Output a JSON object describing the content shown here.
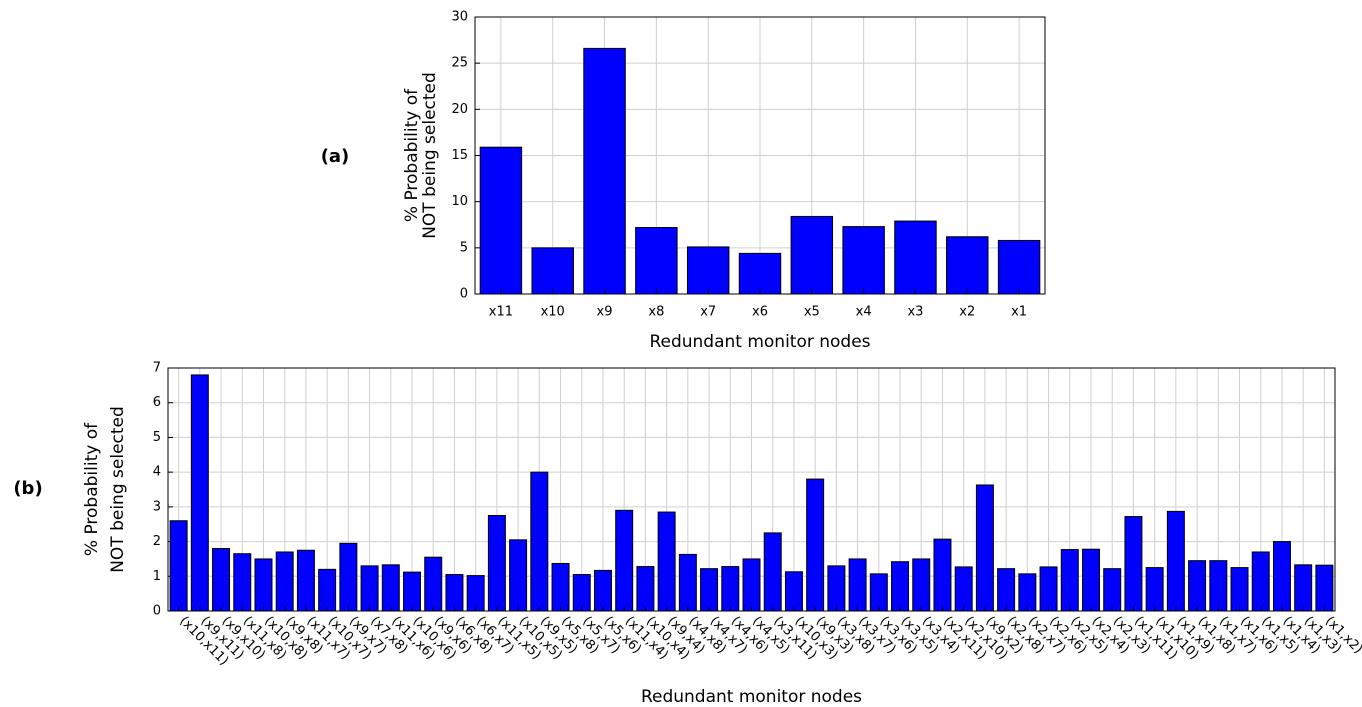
{
  "chart_data": [
    {
      "type": "bar",
      "panel_label": "(a)",
      "xlabel": "Redundant monitor nodes",
      "ylabel": [
        "% Probability of",
        "NOT being selected"
      ],
      "categories": [
        "x11",
        "x10",
        "x9",
        "x8",
        "x7",
        "x6",
        "x5",
        "x4",
        "x3",
        "x2",
        "x1"
      ],
      "values": [
        15.9,
        5.0,
        26.6,
        7.2,
        5.1,
        4.4,
        8.4,
        7.3,
        7.9,
        6.2,
        5.8
      ],
      "color": "#0000ff",
      "ylim": [
        0,
        30
      ],
      "yticks": [
        0,
        5,
        10,
        15,
        20,
        25,
        30
      ],
      "grid": true
    },
    {
      "type": "bar",
      "panel_label": "(b)",
      "xlabel": "Redundant monitor nodes",
      "ylabel": [
        "% Probability of",
        "NOT being selected"
      ],
      "categories": [
        "(x10,x11)",
        "(x9,x11)",
        "(x9,x10)",
        "(x11,x8)",
        "(x10,x8)",
        "(x9,x8)",
        "(x11,x7)",
        "(x10,x7)",
        "(x9,x7)",
        "(x7,x8)",
        "(x11,x6)",
        "(x10,x6)",
        "(x9,x6)",
        "(x6,x8)",
        "(x6,x7)",
        "(x11,x5)",
        "(x10,x5)",
        "(x9,x5)",
        "(x5,x8)",
        "(x5,x7)",
        "(x5,x6)",
        "(x11,x4)",
        "(x10,x4)",
        "(x9,x4)",
        "(x4,x8)",
        "(x4,x7)",
        "(x4,x6)",
        "(x4,x5)",
        "(x3,x11)",
        "(x10,x3)",
        "(x9,x3)",
        "(x3,x8)",
        "(x3,x7)",
        "(x3,x6)",
        "(x3,x5)",
        "(x3,x4)",
        "(x2,x11)",
        "(x2,x10)",
        "(x9,x2)",
        "(x2,x8)",
        "(x2,x7)",
        "(x2,x6)",
        "(x2,x5)",
        "(x2,x4)",
        "(x2,x3)",
        "(x1,x11)",
        "(x1,x10)",
        "(x1,x9)",
        "(x1,x8)",
        "(x1,x7)",
        "(x1,x6)",
        "(x1,x5)",
        "(x1,x4)",
        "(x1,x3)",
        "(x1,x2)"
      ],
      "values": [
        2.6,
        6.8,
        1.8,
        1.65,
        1.5,
        1.7,
        1.75,
        1.2,
        1.95,
        1.3,
        1.33,
        1.12,
        1.55,
        1.05,
        1.02,
        2.75,
        2.05,
        4.0,
        1.37,
        1.05,
        1.17,
        2.9,
        1.28,
        2.85,
        1.63,
        1.22,
        1.28,
        1.5,
        2.25,
        1.13,
        3.8,
        1.3,
        1.5,
        1.07,
        1.42,
        1.5,
        2.07,
        1.27,
        3.63,
        1.22,
        1.07,
        1.27,
        1.77,
        1.78,
        1.22,
        2.72,
        1.25,
        2.87,
        1.45,
        1.45,
        1.25,
        1.7,
        2.0,
        1.33,
        1.32
      ],
      "color": "#0000ff",
      "ylim": [
        0,
        7
      ],
      "yticks": [
        0,
        1,
        2,
        3,
        4,
        5,
        6,
        7
      ],
      "grid": true
    }
  ]
}
